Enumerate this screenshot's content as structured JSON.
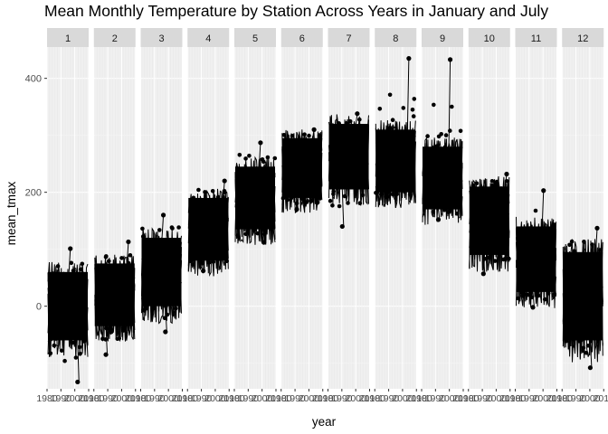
{
  "chart_data": {
    "type": "line",
    "title": "Mean Monthly Temperature by Station Across Years in January and July",
    "xlabel": "year",
    "ylabel": "mean_tmax",
    "ylim": [
      -145,
      455
    ],
    "yticks": [
      0,
      200,
      400
    ],
    "xlim": [
      1980,
      2010
    ],
    "xtick_labels": [
      "1980",
      "1990",
      "2000",
      "2010"
    ],
    "facets": [
      "1",
      "2",
      "3",
      "4",
      "5",
      "6",
      "7",
      "8",
      "9",
      "10",
      "11",
      "12"
    ],
    "panels": [
      {
        "month": "1",
        "min": -133,
        "max": 101,
        "core_low": -60,
        "core_high": 60
      },
      {
        "month": "2",
        "min": -85,
        "max": 113,
        "core_low": -35,
        "core_high": 75
      },
      {
        "month": "3",
        "min": -45,
        "max": 160,
        "core_low": 0,
        "core_high": 120
      },
      {
        "month": "4",
        "min": 62,
        "max": 220,
        "core_low": 80,
        "core_high": 190
      },
      {
        "month": "5",
        "min": 112,
        "max": 287,
        "core_low": 135,
        "core_high": 245
      },
      {
        "month": "6",
        "min": 170,
        "max": 310,
        "core_low": 190,
        "core_high": 295
      },
      {
        "month": "7",
        "min": 140,
        "max": 338,
        "core_low": 205,
        "core_high": 320
      },
      {
        "month": "8",
        "min": 192,
        "max": 435,
        "core_low": 200,
        "core_high": 310
      },
      {
        "month": "9",
        "min": 152,
        "max": 433,
        "core_low": 170,
        "core_high": 280
      },
      {
        "month": "10",
        "min": 57,
        "max": 232,
        "core_low": 90,
        "core_high": 210
      },
      {
        "month": "11",
        "min": -2,
        "max": 203,
        "core_low": 25,
        "core_high": 140
      },
      {
        "month": "12",
        "min": -108,
        "max": 137,
        "core_low": -60,
        "core_high": 95
      }
    ],
    "grid": true,
    "legend": "none",
    "colors": {
      "panel_bg": "#ebebeb",
      "strip_bg": "#d9d9d9",
      "grid_major": "#ffffff",
      "grid_minor": "#f5f5f5",
      "data": "#000000"
    }
  }
}
